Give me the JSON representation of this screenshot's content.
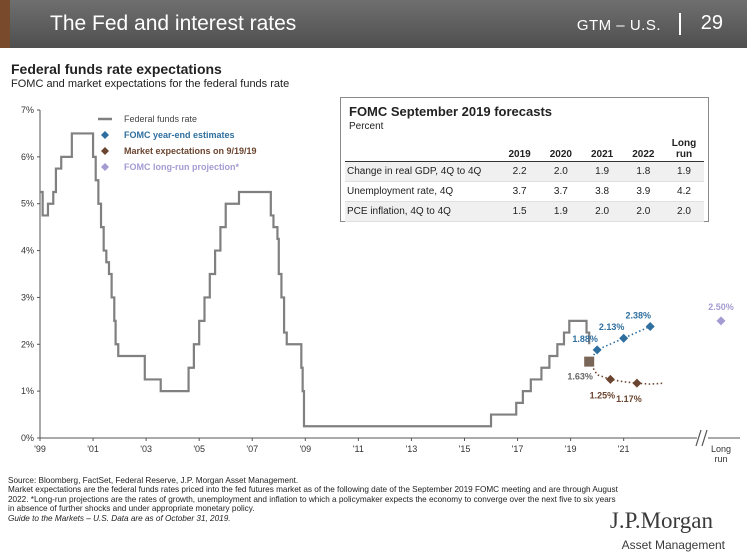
{
  "header": {
    "title": "The Fed and interest rates",
    "gtm": "GTM – U.S.",
    "page": "29"
  },
  "chart_title": "Federal funds rate expectations",
  "chart_subtitle": "FOMC and market expectations for the federal funds rate",
  "colors": {
    "ffr": "#808080",
    "fomc": "#2f6f9f",
    "market": "#6b4530",
    "longrun": "#a59bd3",
    "header": "#5f5f5f",
    "tab": "#7a4a2c"
  },
  "chart_data": {
    "type": "line",
    "title": "Federal funds rate expectations",
    "subtitle": "FOMC and market expectations for the federal funds rate",
    "ylim": [
      0,
      7
    ],
    "xlim": [
      1999,
      2023.5
    ],
    "y_ticks": [
      "0%",
      "1%",
      "2%",
      "3%",
      "4%",
      "5%",
      "6%",
      "7%"
    ],
    "x_ticks": [
      {
        "year": 1999,
        "label": "'99"
      },
      {
        "year": 2001,
        "label": "'01"
      },
      {
        "year": 2003,
        "label": "'03"
      },
      {
        "year": 2005,
        "label": "'05"
      },
      {
        "year": 2007,
        "label": "'07"
      },
      {
        "year": 2009,
        "label": "'09"
      },
      {
        "year": 2011,
        "label": "'11"
      },
      {
        "year": 2013,
        "label": "'13"
      },
      {
        "year": 2015,
        "label": "'15"
      },
      {
        "year": 2017,
        "label": "'17"
      },
      {
        "year": 2019,
        "label": "'19"
      },
      {
        "year": 2021,
        "label": "'21"
      }
    ],
    "long_run_label": "Long run",
    "legend": [
      "Federal funds rate",
      "FOMC year-end estimates",
      "Market expectations on 9/19/19",
      "FOMC long-run projection*"
    ],
    "legend_position": "top-left",
    "grid": false,
    "series": [
      {
        "name": "Federal funds rate",
        "points": [
          [
            1999.0,
            5.25
          ],
          [
            1999.1,
            4.75
          ],
          [
            1999.3,
            5.0
          ],
          [
            1999.5,
            5.25
          ],
          [
            1999.6,
            5.75
          ],
          [
            1999.8,
            6.0
          ],
          [
            2000.2,
            6.5
          ],
          [
            2000.3,
            6.5
          ],
          [
            2000.9,
            6.5
          ],
          [
            2001.0,
            6.0
          ],
          [
            2001.1,
            5.5
          ],
          [
            2001.2,
            5.0
          ],
          [
            2001.3,
            4.5
          ],
          [
            2001.4,
            4.0
          ],
          [
            2001.5,
            3.75
          ],
          [
            2001.6,
            3.5
          ],
          [
            2001.7,
            3.0
          ],
          [
            2001.8,
            2.5
          ],
          [
            2001.85,
            2.0
          ],
          [
            2001.95,
            1.75
          ],
          [
            2002.9,
            1.75
          ],
          [
            2002.95,
            1.25
          ],
          [
            2003.5,
            1.25
          ],
          [
            2003.55,
            1.0
          ],
          [
            2004.5,
            1.0
          ],
          [
            2004.6,
            1.5
          ],
          [
            2004.8,
            2.0
          ],
          [
            2005.0,
            2.5
          ],
          [
            2005.2,
            3.0
          ],
          [
            2005.4,
            3.5
          ],
          [
            2005.6,
            4.0
          ],
          [
            2005.8,
            4.5
          ],
          [
            2006.0,
            5.0
          ],
          [
            2006.5,
            5.25
          ],
          [
            2007.6,
            5.25
          ],
          [
            2007.7,
            4.75
          ],
          [
            2007.8,
            4.5
          ],
          [
            2007.95,
            4.25
          ],
          [
            2008.0,
            3.5
          ],
          [
            2008.1,
            3.0
          ],
          [
            2008.2,
            2.25
          ],
          [
            2008.3,
            2.0
          ],
          [
            2008.8,
            2.0
          ],
          [
            2008.85,
            1.5
          ],
          [
            2008.9,
            1.0
          ],
          [
            2008.95,
            0.25
          ],
          [
            2015.9,
            0.25
          ],
          [
            2016.0,
            0.5
          ],
          [
            2016.9,
            0.5
          ],
          [
            2016.95,
            0.75
          ],
          [
            2017.2,
            1.0
          ],
          [
            2017.5,
            1.25
          ],
          [
            2017.9,
            1.5
          ],
          [
            2018.2,
            1.75
          ],
          [
            2018.5,
            2.0
          ],
          [
            2018.75,
            2.25
          ],
          [
            2018.95,
            2.5
          ],
          [
            2019.5,
            2.5
          ],
          [
            2019.6,
            2.25
          ],
          [
            2019.7,
            2.0
          ]
        ]
      },
      {
        "name": "FOMC year-end estimates",
        "points": [
          [
            2019.7,
            1.63
          ],
          [
            2020.0,
            1.88
          ],
          [
            2021.0,
            2.13
          ],
          [
            2022.0,
            2.38
          ]
        ],
        "labels": [
          "1.63%",
          "1.88%",
          "2.13%",
          "2.38%"
        ]
      },
      {
        "name": "Market expectations on 9/19/19",
        "points": [
          [
            2019.7,
            1.63
          ],
          [
            2020.0,
            1.35
          ],
          [
            2020.5,
            1.25
          ],
          [
            2021.0,
            1.2
          ],
          [
            2021.5,
            1.17
          ],
          [
            2022.0,
            1.15
          ],
          [
            2022.5,
            1.17
          ]
        ],
        "labels": [
          "1.25%",
          "1.17%"
        ]
      },
      {
        "name": "FOMC long-run projection*",
        "points": [
          [
            "Long run",
            2.5
          ]
        ],
        "labels": [
          "2.50%"
        ]
      }
    ]
  },
  "forecast_table": {
    "title": "FOMC September 2019 forecasts",
    "subtitle": "Percent",
    "columns": [
      "2019",
      "2020",
      "2021",
      "2022",
      "Long run"
    ],
    "rows": [
      {
        "label": "Change in real GDP, 4Q to 4Q",
        "values": [
          "2.2",
          "2.0",
          "1.9",
          "1.8",
          "1.9"
        ]
      },
      {
        "label": "Unemployment rate, 4Q",
        "values": [
          "3.7",
          "3.7",
          "3.8",
          "3.9",
          "4.2"
        ]
      },
      {
        "label": "PCE inflation, 4Q to 4Q",
        "values": [
          "1.5",
          "1.9",
          "2.0",
          "2.0",
          "2.0"
        ]
      }
    ]
  },
  "source": {
    "line1": "Source: Bloomberg, FactSet, Federal Reserve, J.P. Morgan Asset Management.",
    "line2": "Market expectations are the federal funds rates priced into the fed futures market as of the following date of the September 2019 FOMC meeting and are through August 2022. *Long-run projections are the rates of growth, unemployment and inflation to which a policymaker expects the economy to converge over the next five to six years in absence of further shocks and under appropriate monetary policy.",
    "line3": "Guide to the Markets – U.S. Data are as of October 31, 2019."
  },
  "logo": {
    "name": "J.P.Morgan",
    "sub": "Asset Management"
  }
}
